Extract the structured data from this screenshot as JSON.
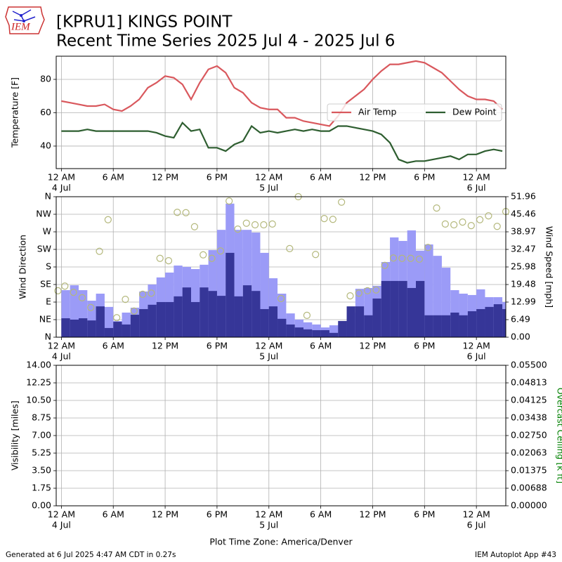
{
  "header": {
    "title": [
      "[KPRU1] KINGS POINT",
      "Recent Time Series 2025 Jul 4 - 2025 Jul 6"
    ],
    "logo_text": "IEM"
  },
  "chart_data": [
    {
      "type": "line",
      "ylabel": "Temperature [F]",
      "xlim": [
        -0.6,
        51.4
      ],
      "ylim": [
        26.5,
        93.9
      ],
      "yticks": [
        40,
        60,
        80
      ],
      "xticks": [
        {
          "value": 0,
          "label": "12 AM"
        },
        {
          "value": 6,
          "label": "6 AM"
        },
        {
          "value": 12,
          "label": "12 PM"
        },
        {
          "value": 18,
          "label": "6 PM"
        },
        {
          "value": 24,
          "label": "12 AM"
        },
        {
          "value": 30,
          "label": "6 AM"
        },
        {
          "value": 36,
          "label": "12 PM"
        },
        {
          "value": 42,
          "label": "6 PM"
        },
        {
          "value": 48,
          "label": "12 AM"
        }
      ],
      "xdates": [
        {
          "value": 0,
          "label": "4 Jul"
        },
        {
          "value": 24,
          "label": "5 Jul"
        },
        {
          "value": 48,
          "label": "6 Jul"
        }
      ],
      "grid": true,
      "legend": "center right",
      "x": [
        0,
        1,
        2,
        3,
        4,
        5,
        6,
        7,
        8,
        9,
        10,
        11,
        12,
        13,
        14,
        15,
        16,
        17,
        18,
        19,
        20,
        21,
        22,
        23,
        24,
        25,
        26,
        27,
        28,
        29,
        30,
        31,
        32,
        33,
        34,
        35,
        36,
        37,
        38,
        39,
        40,
        41,
        42,
        43,
        44,
        45,
        46,
        47,
        48,
        49,
        50,
        51
      ],
      "series": [
        {
          "name": "Air Temp",
          "color": "#d9585d",
          "values": [
            67,
            66,
            65,
            64,
            64,
            65,
            62,
            61,
            64,
            68,
            75,
            78,
            82,
            81,
            77,
            68,
            78,
            86,
            88,
            84,
            75,
            72,
            66,
            63,
            62,
            62,
            57,
            57,
            55,
            54,
            53,
            52,
            58,
            66,
            70,
            74,
            80,
            85,
            89,
            89,
            90,
            91,
            90,
            87,
            84,
            79,
            74,
            70,
            68,
            68,
            67,
            62
          ]
        },
        {
          "name": "Dew Point",
          "color": "#2e5e30",
          "values": [
            49,
            49,
            49,
            50,
            49,
            49,
            49,
            49,
            49,
            49,
            49,
            48,
            46,
            45,
            54,
            49,
            50,
            39,
            39,
            37,
            41,
            43,
            52,
            48,
            49,
            48,
            49,
            50,
            49,
            50,
            49,
            49,
            52,
            52,
            51,
            50,
            49,
            47,
            42,
            32,
            30,
            31,
            31,
            32,
            33,
            34,
            32,
            35,
            35,
            37,
            38,
            37
          ]
        }
      ]
    },
    {
      "type": "bar",
      "ylabel": "Wind Direction",
      "y2label": "Wind Speed [mph]",
      "xlim": [
        -0.6,
        51.4
      ],
      "ylim": [
        0,
        360
      ],
      "yticks": [
        {
          "value": 0,
          "label": "N"
        },
        {
          "value": 45,
          "label": "NE"
        },
        {
          "value": 90,
          "label": "E"
        },
        {
          "value": 135,
          "label": "SE"
        },
        {
          "value": 180,
          "label": "S"
        },
        {
          "value": 225,
          "label": "SW"
        },
        {
          "value": 270,
          "label": "W"
        },
        {
          "value": 315,
          "label": "NW"
        },
        {
          "value": 360,
          "label": "N"
        }
      ],
      "y2lim": [
        0,
        51.96
      ],
      "y2ticks": [
        {
          "value": 0,
          "label": "0.00"
        },
        6.49,
        12.99,
        19.48,
        25.98,
        32.47,
        38.97,
        45.46,
        51.96
      ],
      "xticks": [
        {
          "value": 0,
          "label": "12 AM"
        },
        {
          "value": 6,
          "label": "6 AM"
        },
        {
          "value": 12,
          "label": "12 PM"
        },
        {
          "value": 18,
          "label": "6 PM"
        },
        {
          "value": 24,
          "label": "12 AM"
        },
        {
          "value": 30,
          "label": "6 AM"
        },
        {
          "value": 36,
          "label": "12 PM"
        },
        {
          "value": 42,
          "label": "6 PM"
        },
        {
          "value": 48,
          "label": "12 AM"
        }
      ],
      "xdates": [
        {
          "value": 0,
          "label": "4 Jul"
        },
        {
          "value": 24,
          "label": "5 Jul"
        },
        {
          "value": 48,
          "label": "6 Jul"
        }
      ],
      "grid": true,
      "x": [
        0,
        1,
        2,
        3,
        4,
        5,
        6,
        7,
        8,
        9,
        10,
        11,
        12,
        13,
        14,
        15,
        16,
        17,
        18,
        19,
        20,
        21,
        22,
        23,
        24,
        25,
        26,
        27,
        28,
        29,
        30,
        31,
        32,
        33,
        34,
        35,
        36,
        37,
        38,
        39,
        40,
        41,
        42,
        43,
        44,
        45,
        46,
        47,
        48,
        49,
        50,
        51
      ],
      "series": [
        {
          "color": "#9b9bf7",
          "axis": "y2",
          "values": [
            17.4,
            19.2,
            17.4,
            13.5,
            16.1,
            11.2,
            6.0,
            9.1,
            10.9,
            16.9,
            19.5,
            22.1,
            23.9,
            26.5,
            26.0,
            25.2,
            26.8,
            32.2,
            39.7,
            49.4,
            39.7,
            39.7,
            38.7,
            31.2,
            21.8,
            16.1,
            8.8,
            6.5,
            5.5,
            4.7,
            3.6,
            4.4,
            4.7,
            9.1,
            17.9,
            18.2,
            19.0,
            27.8,
            36.9,
            35.6,
            39.5,
            32.0,
            34.3,
            30.1,
            25.7,
            17.4,
            16.1,
            15.6,
            17.7,
            14.8,
            14.8,
            13.0
          ]
        },
        {
          "color": "#363698",
          "axis": "y2",
          "values": [
            7.0,
            6.5,
            7.0,
            6.2,
            11.4,
            3.4,
            5.7,
            4.7,
            8.3,
            10.4,
            12.0,
            13.0,
            13.0,
            15.1,
            18.4,
            13.0,
            18.4,
            17.1,
            15.3,
            31.2,
            15.1,
            19.2,
            17.1,
            10.4,
            11.4,
            6.8,
            4.7,
            3.6,
            2.9,
            2.6,
            2.6,
            1.6,
            6.0,
            11.4,
            11.4,
            8.1,
            14.3,
            20.8,
            20.8,
            20.8,
            18.2,
            20.8,
            8.1,
            8.1,
            8.1,
            9.1,
            8.1,
            9.6,
            10.4,
            11.2,
            12.2,
            10.4
          ]
        }
      ],
      "scatter": {
        "color": "#b4b87c",
        "x": [
          -0.4,
          0.4,
          1.4,
          2.4,
          3.4,
          4.4,
          5.4,
          6.4,
          7.4,
          8.4,
          9.4,
          10.4,
          11.4,
          12.4,
          13.4,
          14.4,
          15.4,
          16.4,
          17.4,
          18.4,
          19.4,
          20.4,
          21.4,
          22.4,
          23.4,
          24.4,
          25.4,
          26.4,
          27.4,
          28.4,
          29.4,
          30.4,
          31.4,
          32.4,
          33.4,
          34.4,
          35.4,
          36.4,
          37.4,
          38.4,
          39.4,
          40.4,
          41.4,
          42.4,
          43.4,
          44.4,
          45.4,
          46.4,
          47.4,
          48.4,
          49.4,
          50.4,
          51.4
        ],
        "values": [
          119,
          131,
          115,
          101,
          76,
          220,
          301,
          50,
          97,
          67,
          110,
          113,
          202,
          196,
          320,
          319,
          283,
          211,
          202,
          221,
          349,
          277,
          292,
          288,
          288,
          290,
          99,
          227,
          360,
          56,
          212,
          304,
          302,
          346,
          106,
          113,
          119,
          121,
          184,
          203,
          202,
          202,
          200,
          230,
          331,
          290,
          288,
          295,
          286,
          301,
          311,
          284,
          322
        ]
      }
    },
    {
      "type": "line",
      "ylabel": "Visibility [miles]",
      "y2label": "Overcast Ceiling [k ft]",
      "y2label_color": "#008000",
      "xlabel": "Plot Time Zone: America/Denver",
      "xlim": [
        -0.6,
        51.4
      ],
      "ylim": [
        0,
        14
      ],
      "yticks": [
        {
          "value": 0,
          "label": "0.00"
        },
        1.75,
        {
          "value": 3.5,
          "label": "3.50"
        },
        5.25,
        {
          "value": 7,
          "label": "7.00"
        },
        8.75,
        {
          "value": 10.5,
          "label": "10.50"
        },
        12.25,
        {
          "value": 14,
          "label": "14.00"
        }
      ],
      "y2lim": [
        0,
        0.055
      ],
      "y2ticks": [
        {
          "value": 0,
          "label": "0.00000"
        },
        {
          "value": 0.006875,
          "label": "0.00688"
        },
        {
          "value": 0.01375,
          "label": "0.01375"
        },
        {
          "value": 0.020625,
          "label": "0.02063"
        },
        {
          "value": 0.0275,
          "label": "0.02750"
        },
        {
          "value": 0.034375,
          "label": "0.03438"
        },
        {
          "value": 0.04125,
          "label": "0.04125"
        },
        {
          "value": 0.048125,
          "label": "0.04813"
        },
        {
          "value": 0.055,
          "label": "0.05500"
        }
      ],
      "xticks": [
        {
          "value": 0,
          "label": "12 AM"
        },
        {
          "value": 6,
          "label": "6 AM"
        },
        {
          "value": 12,
          "label": "12 PM"
        },
        {
          "value": 18,
          "label": "6 PM"
        },
        {
          "value": 24,
          "label": "12 AM"
        },
        {
          "value": 30,
          "label": "6 AM"
        },
        {
          "value": 36,
          "label": "12 PM"
        },
        {
          "value": 42,
          "label": "6 PM"
        },
        {
          "value": 48,
          "label": "12 AM"
        }
      ],
      "xdates": [
        {
          "value": 0,
          "label": "4 Jul"
        },
        {
          "value": 24,
          "label": "5 Jul"
        },
        {
          "value": 48,
          "label": "6 Jul"
        }
      ],
      "grid": true
    }
  ],
  "footer": {
    "left": "Generated at 6 Jul 2025 4:47 AM CDT in 0.27s",
    "right": "IEM Autoplot App #43"
  }
}
